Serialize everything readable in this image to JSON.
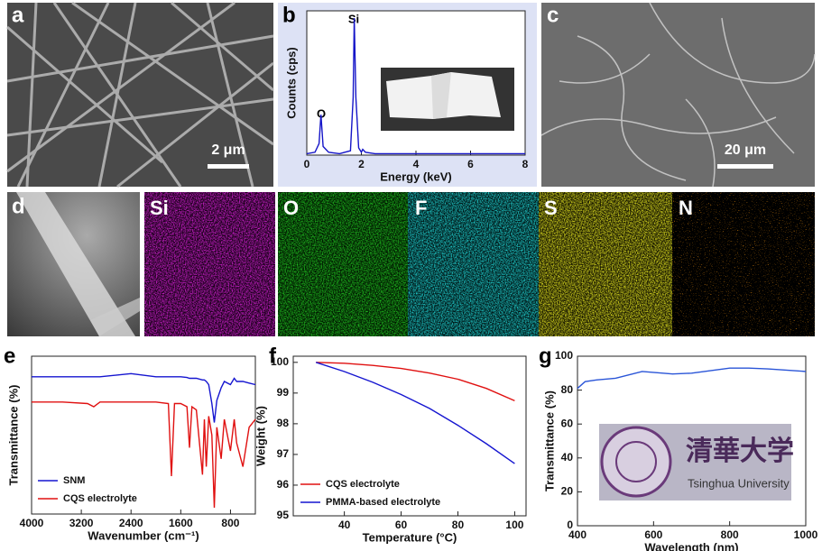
{
  "panel_labels": [
    "a",
    "b",
    "c",
    "d",
    "e",
    "f",
    "g"
  ],
  "scale_bars": [
    "2 μm",
    "20 μm"
  ],
  "element_maps": [
    "Si",
    "O",
    "F",
    "S",
    "N"
  ],
  "inset": {
    "logo_text": "清華大学",
    "caption": "Tsinghua University"
  },
  "chart_data": [
    {
      "type": "line",
      "xlabel": "Energy (keV)",
      "ylabel": "Counts (cps)",
      "xlim": [
        0,
        8
      ],
      "ylim": [
        0,
        100
      ],
      "xticks": [
        0,
        2,
        4,
        6,
        8
      ],
      "annotations": [
        "O",
        "Si"
      ],
      "x": [
        0,
        0.3,
        0.45,
        0.52,
        0.6,
        0.8,
        1.2,
        1.6,
        1.7,
        1.74,
        1.8,
        1.9,
        2.0,
        2.05,
        2.15,
        2.5,
        4,
        6,
        8
      ],
      "series": [
        {
          "color": "#1515c8",
          "values": [
            1,
            2,
            8,
            28,
            6,
            2,
            1,
            3,
            40,
            95,
            40,
            5,
            2,
            4,
            2,
            1,
            1,
            1,
            1
          ]
        }
      ]
    },
    {
      "type": "line",
      "xlabel": "Wavenumber (cm⁻¹)",
      "ylabel": "Transmittance (%)",
      "xlim": [
        4000,
        400
      ],
      "ylim": [
        0,
        100
      ],
      "xticks": [
        4000,
        3200,
        2400,
        1600,
        800
      ],
      "legend": "lower left",
      "x": [
        4000,
        3500,
        3100,
        3000,
        2900,
        2400,
        2000,
        1800,
        1750,
        1700,
        1600,
        1500,
        1460,
        1420,
        1350,
        1250,
        1220,
        1190,
        1150,
        1100,
        1060,
        1020,
        950,
        900,
        800,
        740,
        700,
        600,
        500,
        400
      ],
      "series": [
        {
          "name": "SNM",
          "color": "#1515d0",
          "values": [
            87,
            87,
            87,
            87,
            87,
            89,
            87,
            87,
            87,
            87,
            87,
            86.5,
            86,
            86,
            86,
            85,
            85,
            84,
            82,
            70,
            58,
            72,
            80,
            84,
            82,
            86,
            84,
            84,
            83,
            82
          ]
        },
        {
          "name": "CQS electrolyte",
          "color": "#e01010",
          "values": [
            71,
            71,
            70,
            68,
            71,
            71,
            71,
            70,
            24,
            70,
            70,
            68,
            42,
            68,
            66,
            25,
            60,
            30,
            62,
            50,
            4,
            55,
            35,
            60,
            40,
            60,
            45,
            30,
            55,
            60
          ]
        }
      ]
    },
    {
      "type": "line",
      "xlabel": "Temperature (°C)",
      "ylabel": "Weight (%)",
      "xlim": [
        22,
        104
      ],
      "ylim": [
        95,
        100.2
      ],
      "xticks": [
        40,
        60,
        80,
        100
      ],
      "yticks": [
        95,
        96,
        97,
        98,
        99,
        100
      ],
      "legend": "lower left",
      "x": [
        30,
        40,
        50,
        60,
        70,
        80,
        90,
        100
      ],
      "series": [
        {
          "name": "CQS electrolyte",
          "color": "#e01010",
          "values": [
            100,
            99.97,
            99.9,
            99.8,
            99.65,
            99.45,
            99.15,
            98.75
          ]
        },
        {
          "name": "PMMA-based electrolyte",
          "color": "#1515d0",
          "values": [
            100,
            99.7,
            99.35,
            98.95,
            98.5,
            97.95,
            97.35,
            96.7
          ]
        }
      ]
    },
    {
      "type": "line",
      "xlabel": "Wavelength (nm)",
      "ylabel": "Transmittance (%)",
      "xlim": [
        400,
        1000
      ],
      "ylim": [
        0,
        100
      ],
      "xticks": [
        400,
        600,
        800,
        1000
      ],
      "yticks": [
        0,
        20,
        40,
        60,
        80,
        100
      ],
      "x": [
        400,
        420,
        450,
        500,
        570,
        650,
        700,
        800,
        850,
        900,
        1000
      ],
      "series": [
        {
          "color": "#2a55d8",
          "values": [
            81,
            85,
            86,
            87,
            91,
            89.5,
            90,
            93,
            93,
            92.5,
            91
          ]
        }
      ]
    }
  ]
}
